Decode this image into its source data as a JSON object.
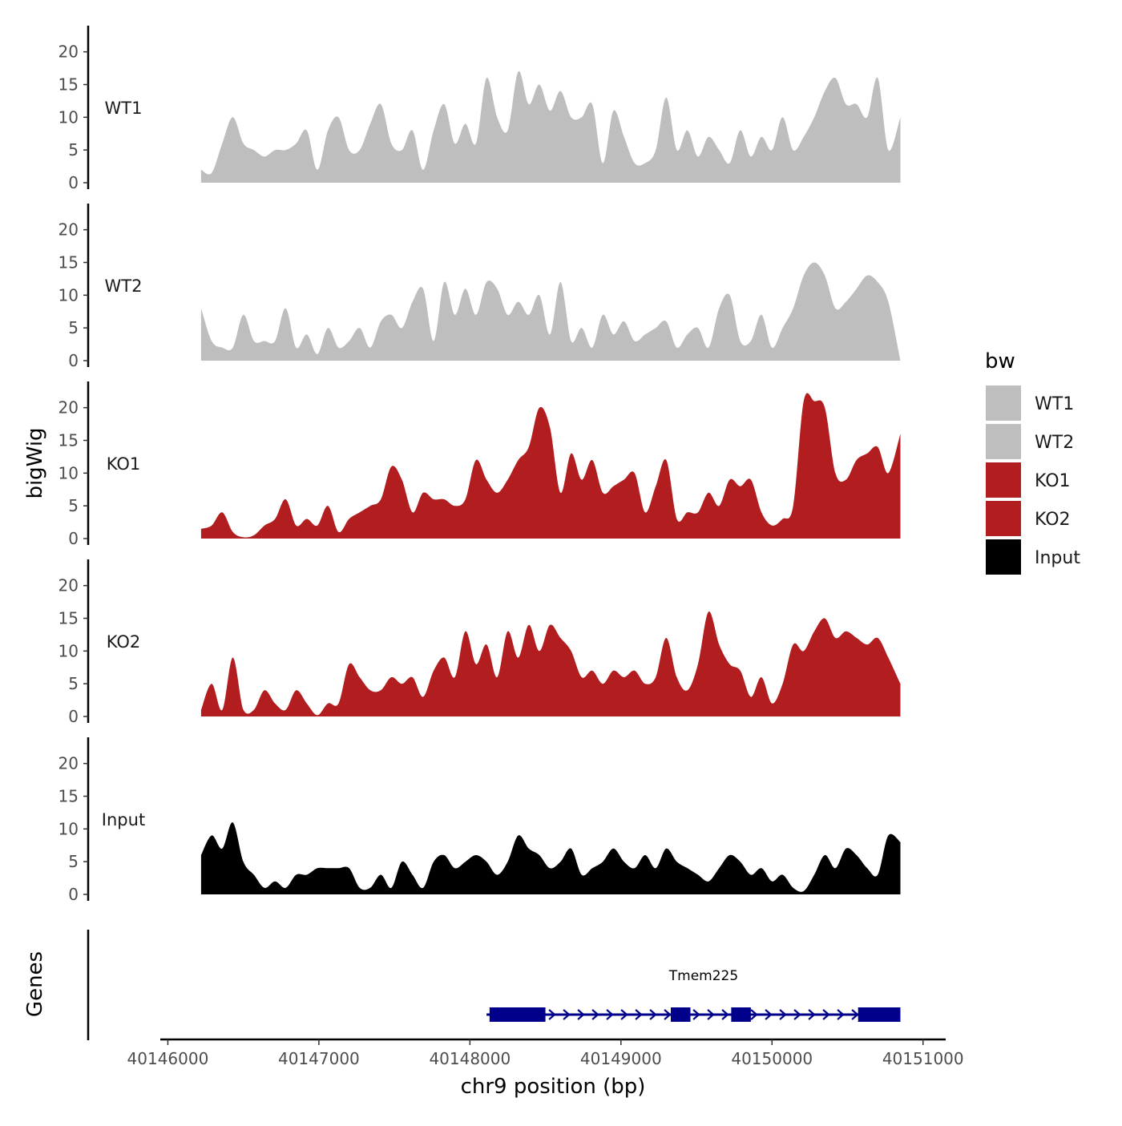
{
  "chart_data": {
    "type": "area",
    "chromosome": "chr9",
    "xlabel": "chr9 position (bp)",
    "ylabel": "bigWig",
    "genes_label": "Genes",
    "xlim": [
      40145950,
      40151150
    ],
    "ylim": [
      0,
      24
    ],
    "x_ticks": [
      40146000,
      40147000,
      40148000,
      40149000,
      40150000,
      40151000
    ],
    "x_tick_labels": [
      "40146000",
      "40147000",
      "40148000",
      "40149000",
      "40150000",
      "40151000"
    ],
    "y_ticks": [
      0,
      5,
      10,
      15,
      20
    ],
    "y_tick_labels": [
      "0",
      "5",
      "10",
      "15",
      "20"
    ],
    "legend": {
      "title": "bw",
      "entries": [
        {
          "label": "WT1",
          "color": "#bebebe"
        },
        {
          "label": "WT2",
          "color": "#bebebe"
        },
        {
          "label": "KO1",
          "color": "#b21d1f"
        },
        {
          "label": "KO2",
          "color": "#b21d1f"
        },
        {
          "label": "Input",
          "color": "#000000"
        }
      ]
    },
    "x": [
      40146220,
      40146290,
      40146360,
      40146430,
      40146500,
      40146570,
      40146640,
      40146710,
      40146780,
      40146850,
      40146920,
      40146990,
      40147060,
      40147130,
      40147200,
      40147270,
      40147340,
      40147410,
      40147480,
      40147550,
      40147620,
      40147690,
      40147760,
      40147830,
      40147900,
      40147970,
      40148040,
      40148110,
      40148180,
      40148250,
      40148320,
      40148390,
      40148460,
      40148530,
      40148600,
      40148670,
      40148740,
      40148810,
      40148880,
      40148950,
      40149020,
      40149090,
      40149160,
      40149230,
      40149300,
      40149370,
      40149440,
      40149510,
      40149580,
      40149650,
      40149720,
      40149790,
      40149860,
      40149930,
      40150000,
      40150070,
      40150140,
      40150210,
      40150280,
      40150350,
      40150420,
      40150490,
      40150560,
      40150630,
      40150700,
      40150770,
      40150850
    ],
    "series": [
      {
        "name": "WT1",
        "color": "#bebebe",
        "values": [
          2,
          1.5,
          6,
          10,
          6,
          5,
          4,
          5,
          5,
          6,
          8,
          2,
          8,
          10,
          5,
          5,
          9,
          12,
          6,
          5,
          8,
          2,
          8,
          12,
          6,
          9,
          6,
          16,
          10,
          8,
          17,
          12,
          15,
          11,
          14,
          10,
          10,
          12,
          3,
          11,
          7,
          3,
          3,
          5,
          13,
          5,
          8,
          4,
          7,
          5,
          3,
          8,
          4,
          7,
          5,
          10,
          5,
          7,
          10,
          14,
          16,
          12,
          12,
          10,
          16,
          5,
          10
        ]
      },
      {
        "name": "WT2",
        "color": "#bebebe",
        "values": [
          8,
          3,
          2,
          2,
          7,
          3,
          3,
          3,
          8,
          2,
          4,
          1,
          5,
          2,
          3,
          5,
          2,
          6,
          7,
          5,
          9,
          11,
          3,
          12,
          7,
          11,
          7,
          12,
          11,
          7,
          9,
          7,
          10,
          4,
          12,
          3,
          5,
          2,
          7,
          4,
          6,
          3,
          4,
          5,
          6,
          2,
          4,
          5,
          2,
          8,
          10,
          3,
          3,
          7,
          2,
          5,
          8,
          13,
          15,
          13,
          8,
          9,
          11,
          13,
          12,
          9,
          0
        ]
      },
      {
        "name": "KO1",
        "color": "#b21d1f",
        "values": [
          1.5,
          2,
          4,
          1,
          0.2,
          0.5,
          2,
          3,
          6,
          2,
          3,
          2,
          5,
          1,
          3,
          4,
          5,
          6,
          11,
          9,
          4,
          7,
          6,
          6,
          5,
          6,
          12,
          9,
          7,
          9,
          12,
          14,
          20,
          17,
          7,
          13,
          9,
          12,
          7,
          8,
          9,
          10,
          4,
          8,
          12,
          3,
          4,
          4,
          7,
          5,
          9,
          8,
          9,
          4,
          2,
          3,
          5,
          21,
          21,
          20,
          10,
          9,
          12,
          13,
          14,
          10,
          16
        ]
      },
      {
        "name": "KO2",
        "color": "#b21d1f",
        "values": [
          1,
          5,
          1,
          9,
          1,
          1,
          4,
          2,
          1,
          4,
          2,
          0.2,
          2,
          2,
          8,
          6,
          4,
          4,
          6,
          5,
          6,
          3,
          7,
          9,
          6,
          13,
          8,
          11,
          6,
          13,
          9,
          14,
          10,
          14,
          12,
          10,
          6,
          7,
          5,
          7,
          6,
          7,
          5,
          6,
          12,
          6,
          4,
          8,
          16,
          11,
          8,
          7,
          3,
          6,
          2,
          5,
          11,
          10,
          13,
          15,
          12,
          13,
          12,
          11,
          12,
          9,
          5
        ]
      },
      {
        "name": "Input",
        "color": "#000000",
        "values": [
          6,
          9,
          7,
          11,
          5,
          3,
          1,
          2,
          1,
          3,
          3,
          4,
          4,
          4,
          4,
          1,
          1,
          3,
          1,
          5,
          3,
          1,
          5,
          6,
          4,
          5,
          6,
          5,
          3,
          5,
          9,
          7,
          6,
          4,
          5,
          7,
          3,
          4,
          5,
          7,
          5,
          4,
          6,
          4,
          7,
          5,
          4,
          3,
          2,
          4,
          6,
          5,
          3,
          4,
          2,
          3,
          1,
          0.5,
          3,
          6,
          4,
          7,
          6,
          4,
          3,
          9,
          8
        ]
      }
    ],
    "gene": {
      "name": "Tmem225",
      "start": 40148110,
      "end": 40150850,
      "strand": "+",
      "color": "#00008b",
      "exons": [
        [
          40148130,
          40148500
        ],
        [
          40149330,
          40149460
        ],
        [
          40149730,
          40149860
        ],
        [
          40150570,
          40150850
        ]
      ]
    }
  }
}
